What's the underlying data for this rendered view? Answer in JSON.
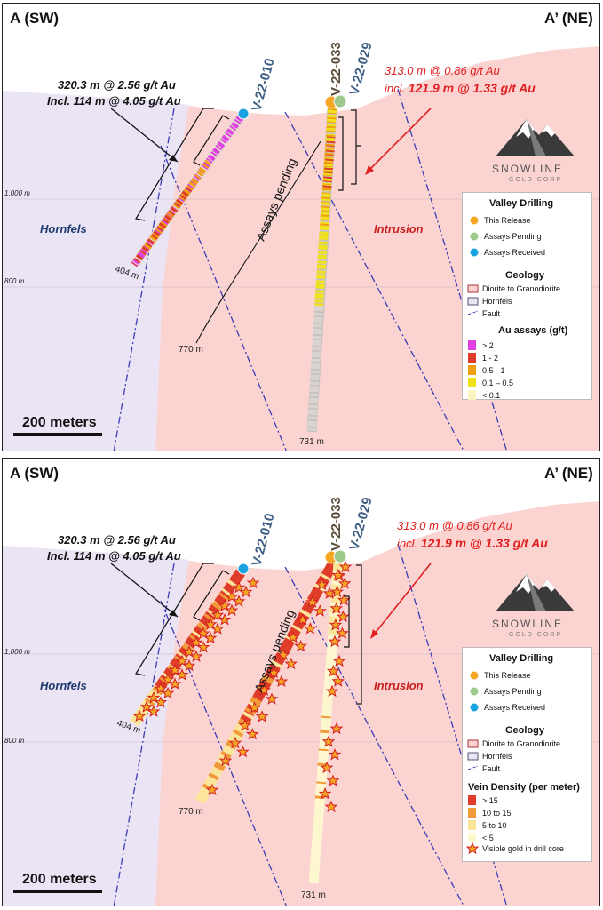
{
  "section": {
    "left_label": "A (SW)",
    "right_label": "A’ (NE)"
  },
  "holes": {
    "h010": "V-22-010",
    "h033": "V-22-033",
    "h029": "V-22-029"
  },
  "intercepts": {
    "h010_line1": "320.3 m @ 2.56 g/t Au",
    "h010_line2": "Incl. 114 m @ 4.05 g/t Au",
    "h029_line1": "313.0 m @ 0.86 g/t Au",
    "h029_line2_prefix": "incl. ",
    "h029_line2_bold": "121.9 m @ 1.33 g/t Au"
  },
  "geology_labels": {
    "hornfels": "Hornfels",
    "intrusion": "Intrusion"
  },
  "elevations": {
    "e1000": "1,000 m",
    "e800": "800 m"
  },
  "depths": {
    "d404": "404 m",
    "d770": "770 m",
    "d731": "731 m"
  },
  "assays_pending": "Assays pending",
  "scale_bar": "200 meters",
  "logo": {
    "name": "SNOWLINE",
    "sub": "GOLD CORP"
  },
  "legend_top": {
    "drilling_title": "Valley Drilling",
    "drilling_items": [
      {
        "label": "This Release",
        "color": "#f5a623"
      },
      {
        "label": "Assays Pending",
        "color": "#9dc98a"
      },
      {
        "label": "Assays Received",
        "color": "#1aa3e0"
      }
    ],
    "geology_title": "Geology",
    "geology_items": [
      "Diorite to Granodiorite",
      "Hornfels",
      "Fault"
    ],
    "assay_title": "Au assays (g/t)",
    "assay_items": [
      {
        "label": "> 2",
        "color": "#e040e0"
      },
      {
        "label": "1 - 2",
        "color": "#e03c2a"
      },
      {
        "label": "0.5 - 1",
        "color": "#f0a010"
      },
      {
        "label": "0.1 – 0.5",
        "color": "#f2e21c"
      },
      {
        "label": "< 0.1",
        "color": "#fbf5c0"
      }
    ]
  },
  "legend_bottom": {
    "drilling_title": "Valley Drilling",
    "drilling_items": [
      {
        "label": "This Release",
        "color": "#f5a623"
      },
      {
        "label": "Assays Pending",
        "color": "#9dc98a"
      },
      {
        "label": "Assays Received",
        "color": "#1aa3e0"
      }
    ],
    "geology_title": "Geology",
    "geology_items": [
      "Diorite to Granodiorite",
      "Hornfels",
      "Fault"
    ],
    "vein_title": "Vein Density (per meter)",
    "vein_items": [
      {
        "label": "> 15",
        "color": "#e03c2a"
      },
      {
        "label": "10 to 15",
        "color": "#f09a3a"
      },
      {
        "label": "5 to 10",
        "color": "#fbe59a"
      },
      {
        "label": "< 5",
        "color": "#fdf7d0"
      }
    ],
    "visible_gold": "Visible gold in drill core"
  },
  "colors": {
    "intrusion": "#fbd4d2",
    "hornfels": "#ebe4f5",
    "fault": "#3c3cb4"
  }
}
